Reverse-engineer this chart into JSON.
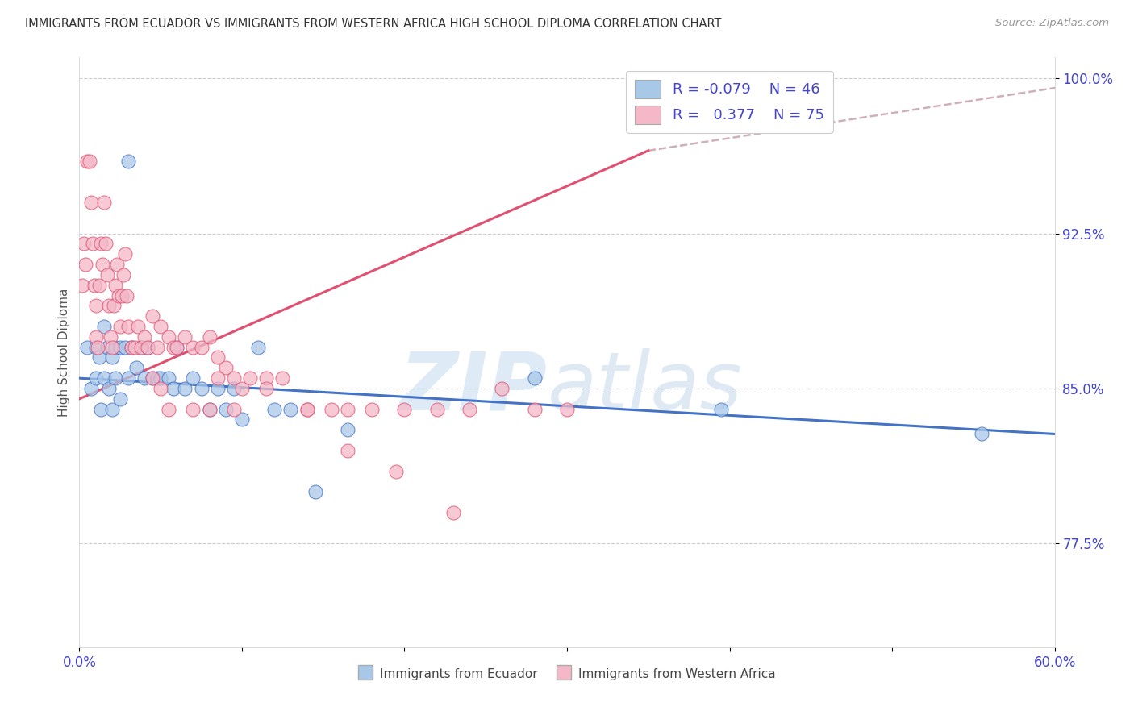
{
  "title": "IMMIGRANTS FROM ECUADOR VS IMMIGRANTS FROM WESTERN AFRICA HIGH SCHOOL DIPLOMA CORRELATION CHART",
  "source": "Source: ZipAtlas.com",
  "ylabel_label": "High School Diploma",
  "legend_label1": "Immigrants from Ecuador",
  "legend_label2": "Immigrants from Western Africa",
  "legend_R1": "-0.079",
  "legend_N1": "46",
  "legend_R2": "0.377",
  "legend_N2": "75",
  "watermark_zip": "ZIP",
  "watermark_atlas": "atlas",
  "color_blue": "#a8c8e8",
  "color_pink": "#f4b8c8",
  "line_blue": "#4472c4",
  "line_pink": "#e05070",
  "line_dashed_color": "#d0b0b8",
  "title_color": "#333333",
  "axis_label_color": "#4444cc",
  "xlim": [
    0.0,
    0.6
  ],
  "ylim": [
    0.725,
    1.01
  ],
  "yticks": [
    0.775,
    0.85,
    0.925,
    1.0
  ],
  "ytick_labels": [
    "77.5%",
    "85.0%",
    "92.5%",
    "100.0%"
  ],
  "xticks": [
    0.0,
    0.1,
    0.2,
    0.3,
    0.4,
    0.5,
    0.6
  ],
  "xtick_labels": [
    "0.0%",
    "",
    "",
    "",
    "",
    "",
    "60.0%"
  ],
  "blue_scatter_x": [
    0.005,
    0.007,
    0.01,
    0.01,
    0.012,
    0.013,
    0.015,
    0.015,
    0.017,
    0.018,
    0.02,
    0.02,
    0.022,
    0.022,
    0.025,
    0.025,
    0.028,
    0.03,
    0.03,
    0.032,
    0.035,
    0.038,
    0.04,
    0.042,
    0.045,
    0.048,
    0.05,
    0.055,
    0.058,
    0.06,
    0.065,
    0.07,
    0.075,
    0.08,
    0.085,
    0.09,
    0.095,
    0.1,
    0.11,
    0.12,
    0.13,
    0.145,
    0.165,
    0.28,
    0.395,
    0.555
  ],
  "blue_scatter_y": [
    0.87,
    0.85,
    0.87,
    0.855,
    0.865,
    0.84,
    0.88,
    0.855,
    0.87,
    0.85,
    0.865,
    0.84,
    0.87,
    0.855,
    0.87,
    0.845,
    0.87,
    0.96,
    0.855,
    0.87,
    0.86,
    0.87,
    0.855,
    0.87,
    0.855,
    0.855,
    0.855,
    0.855,
    0.85,
    0.87,
    0.85,
    0.855,
    0.85,
    0.84,
    0.85,
    0.84,
    0.85,
    0.835,
    0.87,
    0.84,
    0.84,
    0.8,
    0.83,
    0.855,
    0.84,
    0.828
  ],
  "pink_scatter_x": [
    0.002,
    0.003,
    0.004,
    0.005,
    0.006,
    0.007,
    0.008,
    0.009,
    0.01,
    0.01,
    0.011,
    0.012,
    0.013,
    0.014,
    0.015,
    0.016,
    0.017,
    0.018,
    0.019,
    0.02,
    0.021,
    0.022,
    0.023,
    0.024,
    0.025,
    0.026,
    0.027,
    0.028,
    0.029,
    0.03,
    0.032,
    0.034,
    0.036,
    0.038,
    0.04,
    0.042,
    0.045,
    0.048,
    0.05,
    0.055,
    0.058,
    0.06,
    0.065,
    0.07,
    0.075,
    0.08,
    0.085,
    0.09,
    0.095,
    0.1,
    0.105,
    0.115,
    0.125,
    0.14,
    0.155,
    0.165,
    0.18,
    0.2,
    0.22,
    0.24,
    0.26,
    0.28,
    0.3,
    0.045,
    0.055,
    0.07,
    0.085,
    0.095,
    0.115,
    0.14,
    0.165,
    0.195,
    0.23,
    0.05,
    0.08
  ],
  "pink_scatter_y": [
    0.9,
    0.92,
    0.91,
    0.96,
    0.96,
    0.94,
    0.92,
    0.9,
    0.89,
    0.875,
    0.87,
    0.9,
    0.92,
    0.91,
    0.94,
    0.92,
    0.905,
    0.89,
    0.875,
    0.87,
    0.89,
    0.9,
    0.91,
    0.895,
    0.88,
    0.895,
    0.905,
    0.915,
    0.895,
    0.88,
    0.87,
    0.87,
    0.88,
    0.87,
    0.875,
    0.87,
    0.885,
    0.87,
    0.88,
    0.875,
    0.87,
    0.87,
    0.875,
    0.87,
    0.87,
    0.875,
    0.865,
    0.86,
    0.855,
    0.85,
    0.855,
    0.855,
    0.855,
    0.84,
    0.84,
    0.84,
    0.84,
    0.84,
    0.84,
    0.84,
    0.85,
    0.84,
    0.84,
    0.855,
    0.84,
    0.84,
    0.855,
    0.84,
    0.85,
    0.84,
    0.82,
    0.81,
    0.79,
    0.85,
    0.84
  ],
  "blue_line_x": [
    0.0,
    0.6
  ],
  "blue_line_y": [
    0.855,
    0.828
  ],
  "pink_line_x": [
    0.0,
    0.35
  ],
  "pink_line_y": [
    0.845,
    0.965
  ],
  "dashed_line_x": [
    0.35,
    0.68
  ],
  "dashed_line_y": [
    0.965,
    1.005
  ]
}
